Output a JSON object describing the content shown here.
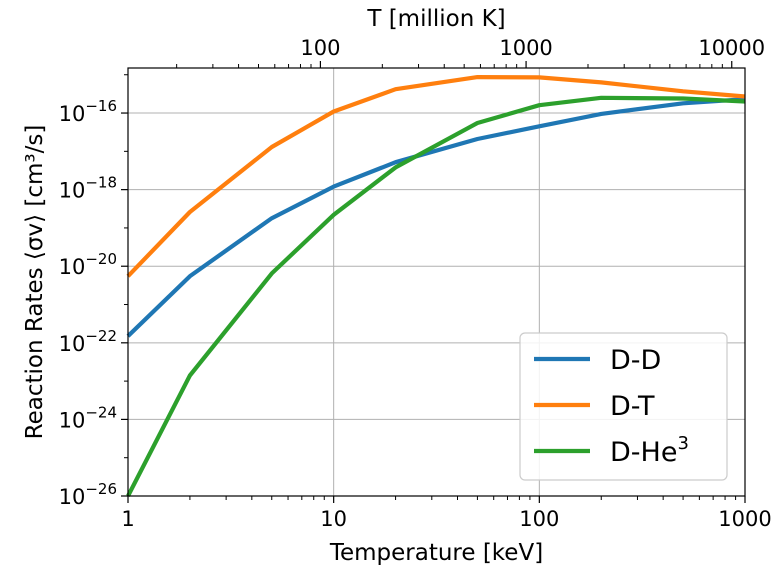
{
  "chart_data": {
    "type": "line",
    "xlabel": "Temperature [keV]",
    "ylabel": "Reaction Rates ⟨σv⟩ [cm³/s]",
    "top_xlabel": "T [million K]",
    "xscale": "log",
    "yscale": "log",
    "xlim": [
      1,
      1000
    ],
    "ylim": [
      1e-26,
      1.5e-15
    ],
    "top_xlim": [
      11.6,
      11600
    ],
    "grid": true,
    "legend_position": "lower-right",
    "x_ticks": [
      {
        "value": 1,
        "label": "1"
      },
      {
        "value": 10,
        "label": "10"
      },
      {
        "value": 100,
        "label": "100"
      },
      {
        "value": 1000,
        "label": "1000"
      }
    ],
    "top_x_ticks": [
      {
        "value": 100,
        "label": "100"
      },
      {
        "value": 1000,
        "label": "1000"
      },
      {
        "value": 10000,
        "label": "10000"
      }
    ],
    "y_ticks": [
      {
        "exp": -26,
        "base": "10",
        "sup": "−26"
      },
      {
        "exp": -24,
        "base": "10",
        "sup": "−24"
      },
      {
        "exp": -22,
        "base": "10",
        "sup": "−22"
      },
      {
        "exp": -20,
        "base": "10",
        "sup": "−20"
      },
      {
        "exp": -18,
        "base": "10",
        "sup": "−18"
      },
      {
        "exp": -16,
        "base": "10",
        "sup": "−16"
      }
    ],
    "series": [
      {
        "name": "D-D",
        "color": "#1f77b4",
        "x": [
          1,
          2,
          5,
          10,
          20,
          50,
          100,
          200,
          500,
          1000
        ],
        "y": [
          1.5e-22,
          5.5e-21,
          1.8e-19,
          1.2e-18,
          5.2e-18,
          2.1e-17,
          4.5e-17,
          9.5e-17,
          1.8e-16,
          2.3e-16
        ]
      },
      {
        "name": "D-T",
        "color": "#ff7f0e",
        "x": [
          1,
          2,
          5,
          10,
          20,
          50,
          100,
          200,
          500,
          1000
        ],
        "y": [
          5.5e-21,
          2.6e-19,
          1.3e-17,
          1.1e-16,
          4.2e-16,
          8.7e-16,
          8.5e-16,
          6.3e-16,
          3.7e-16,
          2.7e-16
        ]
      },
      {
        "name": "D-He³",
        "name_base": "D-He",
        "name_sup": "3",
        "color": "#2ca02c",
        "x": [
          1,
          2,
          5,
          10,
          20,
          50,
          100,
          200,
          500,
          1000
        ],
        "y": [
          1e-26,
          1.4e-23,
          6.5e-21,
          2.2e-19,
          3.8e-18,
          5.5e-17,
          1.6e-16,
          2.5e-16,
          2.4e-16,
          2e-16
        ]
      }
    ]
  }
}
